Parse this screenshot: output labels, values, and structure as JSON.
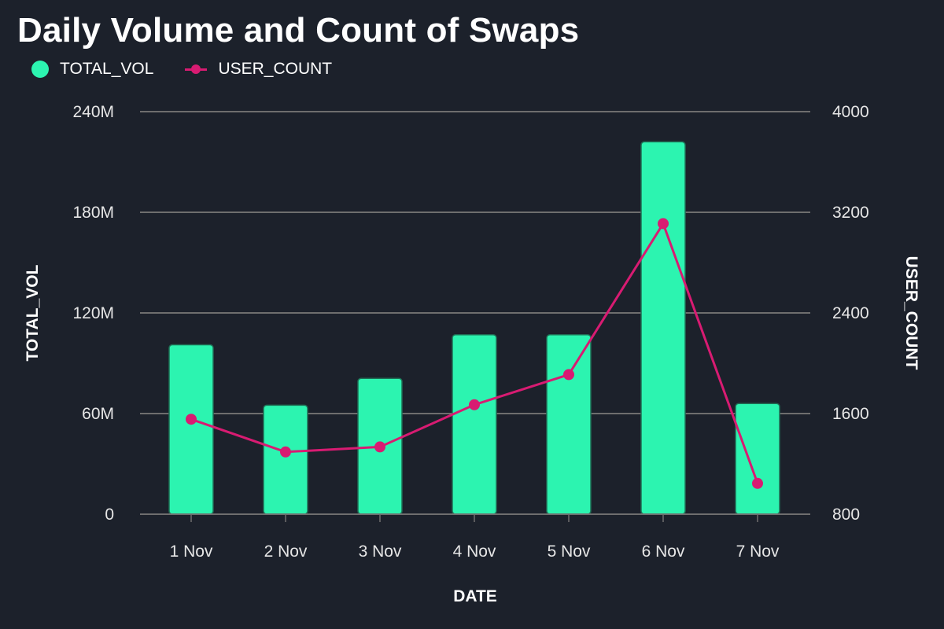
{
  "chart_data": {
    "type": "bar",
    "title": "Daily Volume and Count of Swaps",
    "categories": [
      "1 Nov",
      "2 Nov",
      "3 Nov",
      "4 Nov",
      "5 Nov",
      "6 Nov",
      "7 Nov"
    ],
    "series": [
      {
        "name": "TOTAL_VOL",
        "type": "bar",
        "axis": "left",
        "color": "#2cf4b0",
        "values": [
          101000000,
          65000000,
          81000000,
          107000000,
          107000000,
          222000000,
          66000000
        ]
      },
      {
        "name": "USER_COUNT",
        "type": "line",
        "axis": "right",
        "color": "#d81b72",
        "values": [
          1555,
          1295,
          1335,
          1670,
          1910,
          3110,
          1045
        ]
      }
    ],
    "xlabel": "DATE",
    "ylabel": "TOTAL_VOL",
    "y2label": "USER_COUNT",
    "ylim": [
      0,
      240000000
    ],
    "y2lim": [
      800,
      4000
    ],
    "yticks": [
      0,
      60000000,
      120000000,
      180000000,
      240000000
    ],
    "ytick_labels": [
      "0",
      "60M",
      "120M",
      "180M",
      "240M"
    ],
    "y2ticks": [
      800,
      1600,
      2400,
      3200,
      4000
    ],
    "y2tick_labels": [
      "800",
      "1600",
      "2400",
      "3200",
      "4000"
    ],
    "grid": true,
    "legend_position": "top-left"
  }
}
